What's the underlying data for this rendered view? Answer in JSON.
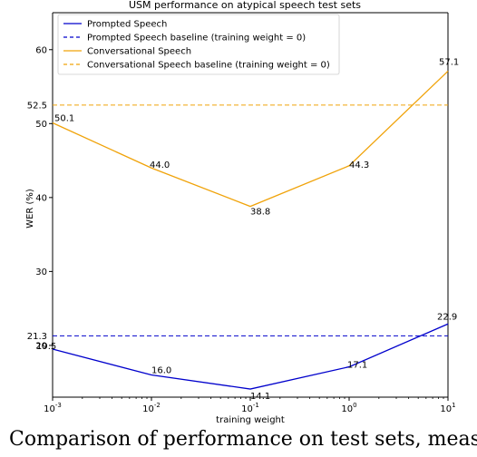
{
  "chart_data": {
    "type": "line",
    "title": "USM performance on atypical speech test sets",
    "xlabel": "training weight",
    "ylabel": "WER (%)",
    "xscale": "log",
    "xlim": [
      0.001,
      10
    ],
    "ylim": [
      13,
      65
    ],
    "x_ticks": [
      {
        "base": "10",
        "exp": "-3"
      },
      {
        "base": "10",
        "exp": "-2"
      },
      {
        "base": "10",
        "exp": "-1"
      },
      {
        "base": "10",
        "exp": "0"
      },
      {
        "base": "10",
        "exp": "1"
      }
    ],
    "y_ticks": [
      "20",
      "30",
      "40",
      "50",
      "60"
    ],
    "x": [
      0.001,
      0.01,
      0.1,
      1,
      10
    ],
    "series": [
      {
        "name": "Prompted Speech",
        "color": "#0000cc",
        "style": "solid",
        "values": [
          19.5,
          16.0,
          14.1,
          17.1,
          22.9
        ],
        "labels": [
          "19.5",
          "16.0",
          "14.1",
          "17.1",
          "22.9"
        ]
      },
      {
        "name": "Conversational Speech",
        "color": "#f0a30a",
        "style": "solid",
        "values": [
          50.1,
          44.0,
          38.8,
          44.3,
          57.1
        ],
        "labels": [
          "50.1",
          "44.0",
          "38.8",
          "44.3",
          "57.1"
        ]
      }
    ],
    "baselines": [
      {
        "name": "Prompted Speech baseline (training weight = 0)",
        "value": 21.3,
        "label": "21.3",
        "color": "#0000cc",
        "style": "dashed"
      },
      {
        "name": "Conversational Speech baseline (training weight = 0)",
        "value": 52.5,
        "label": "52.5",
        "color": "#f0a30a",
        "style": "dashed"
      }
    ],
    "legend": {
      "placement": "top-left",
      "entries": [
        "Prompted Speech",
        "Prompted Speech baseline (training weight = 0)",
        "Conversational Speech",
        "Conversational Speech baseline (training weight = 0)"
      ]
    },
    "grid": false
  },
  "caption": "Comparison of performance on test sets, meas"
}
